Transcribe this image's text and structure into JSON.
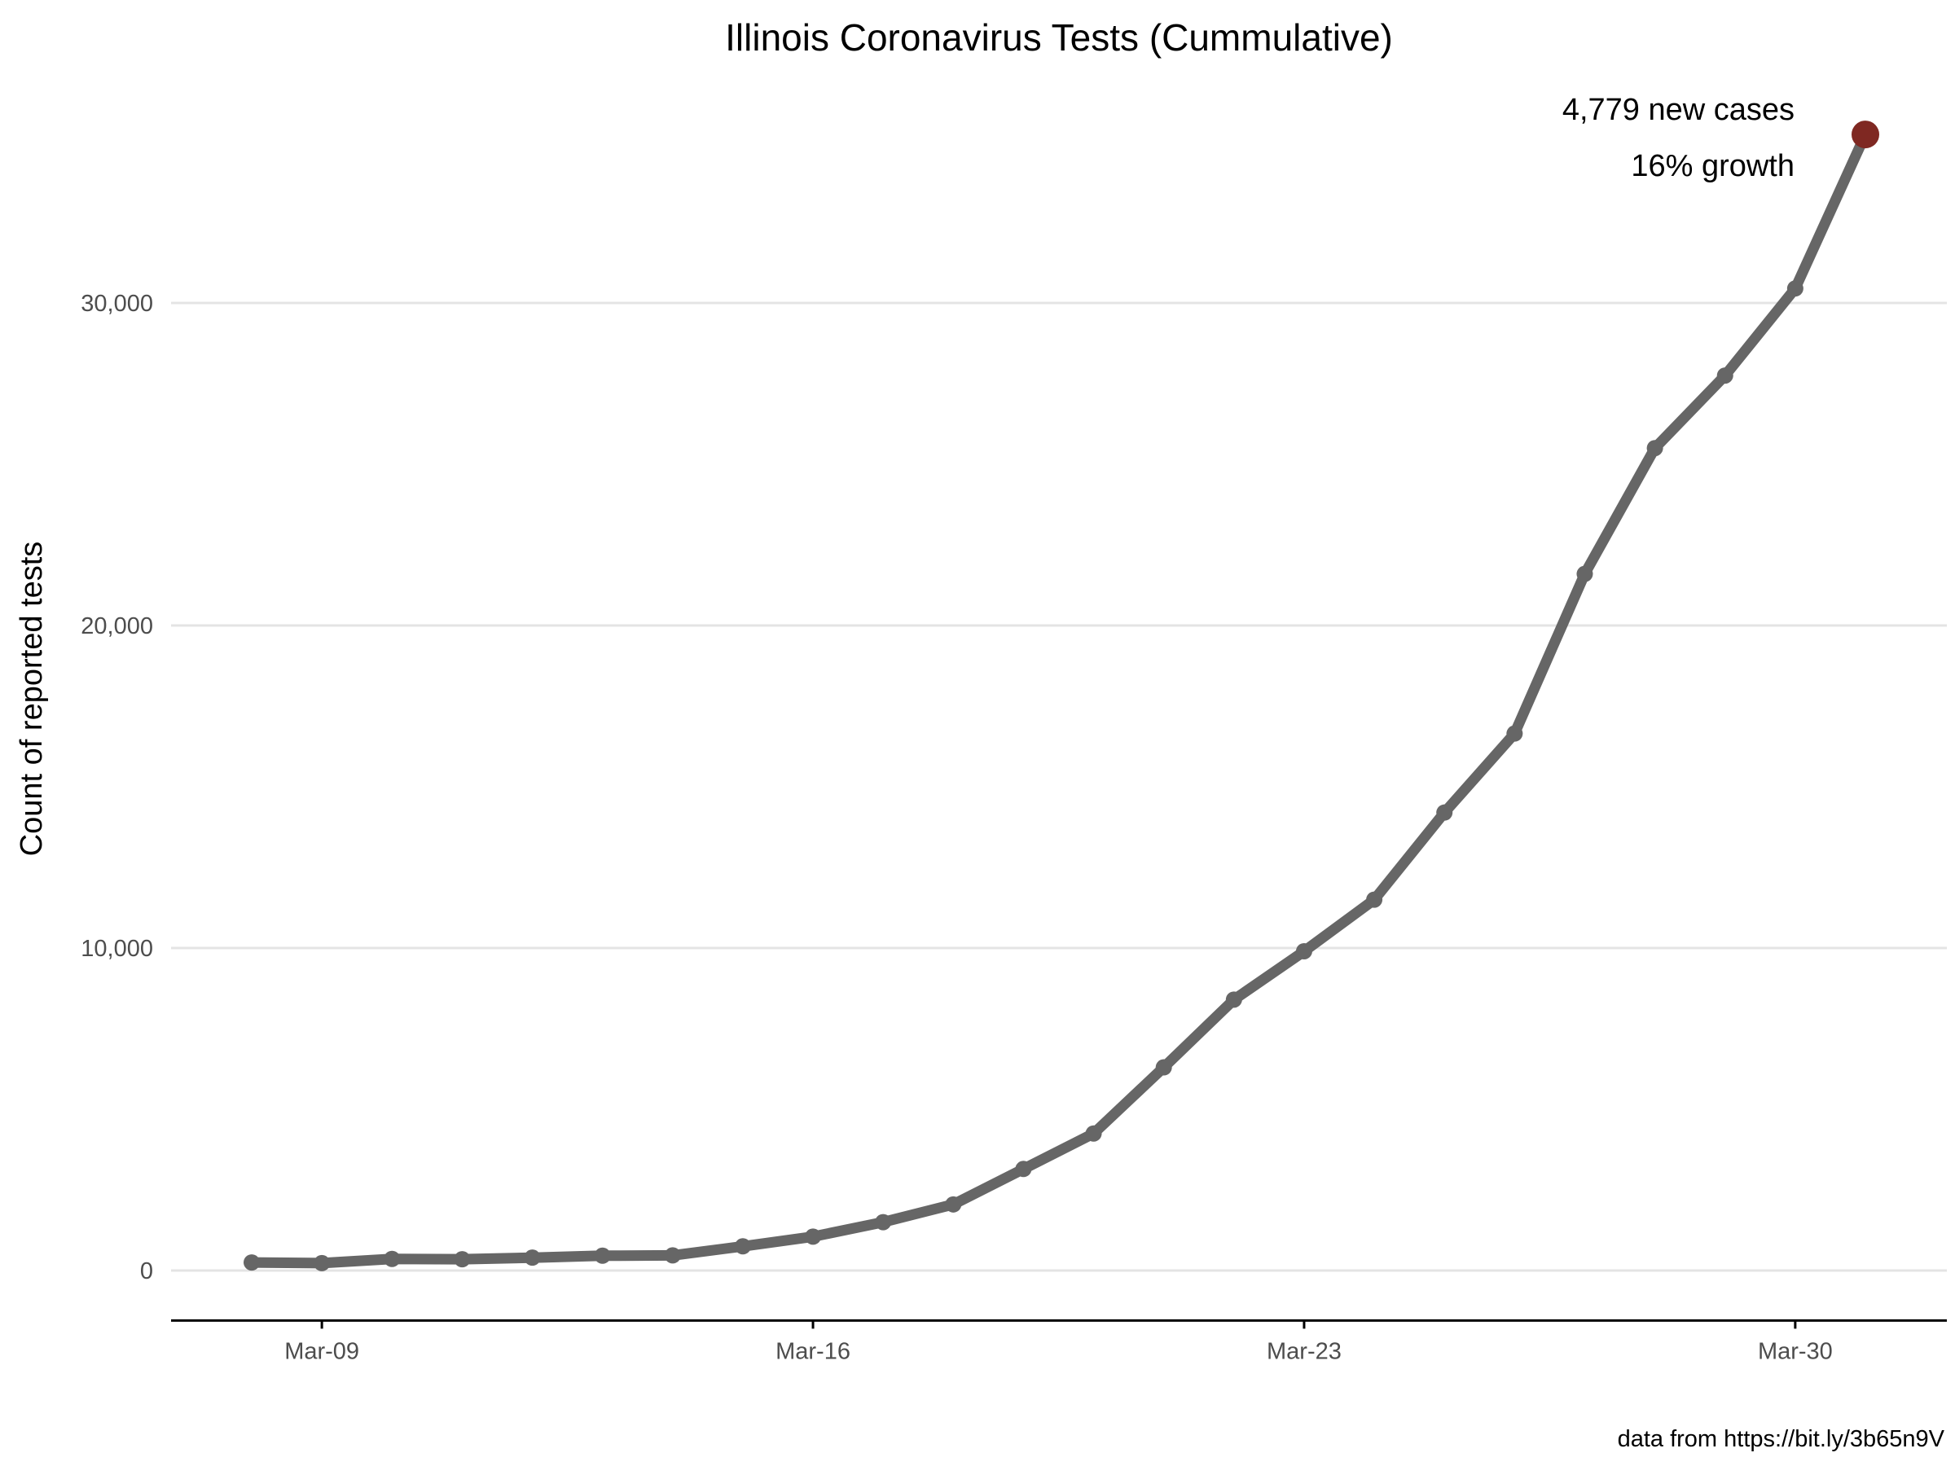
{
  "chart_data": {
    "type": "line",
    "title": "Illinois Coronavirus Tests (Cummulative)",
    "xlabel": "",
    "ylabel": "Count of reported tests",
    "caption": "data from https://bit.ly/3b65n9V",
    "x": [
      "Mar-08",
      "Mar-09",
      "Mar-10",
      "Mar-11",
      "Mar-12",
      "Mar-13",
      "Mar-14",
      "Mar-15",
      "Mar-16",
      "Mar-17",
      "Mar-18",
      "Mar-19",
      "Mar-20",
      "Mar-21",
      "Mar-22",
      "Mar-23",
      "Mar-24",
      "Mar-25",
      "Mar-26",
      "Mar-27",
      "Mar-28",
      "Mar-29",
      "Mar-30",
      "Mar-31"
    ],
    "series": [
      {
        "values": [
          250,
          230,
          360,
          350,
          400,
          460,
          470,
          750,
          1050,
          1500,
          2050,
          3150,
          4250,
          6300,
          8400,
          9900,
          11500,
          14200,
          16650,
          21600,
          25500,
          27750,
          30450,
          35225
        ]
      }
    ],
    "x_ticks": [
      "Mar-09",
      "Mar-16",
      "Mar-23",
      "Mar-30"
    ],
    "y_ticks": [
      0,
      10000,
      20000,
      30000
    ],
    "y_tick_labels": [
      "0",
      "10,000",
      "20,000",
      "30,000"
    ],
    "ylim": [
      -1500,
      37500
    ],
    "grid": "horizontal",
    "line_color": "#666666",
    "highlight_color": "#7f2822",
    "annotation": {
      "line1": "4,779 new cases",
      "line2": "16% growth"
    }
  }
}
